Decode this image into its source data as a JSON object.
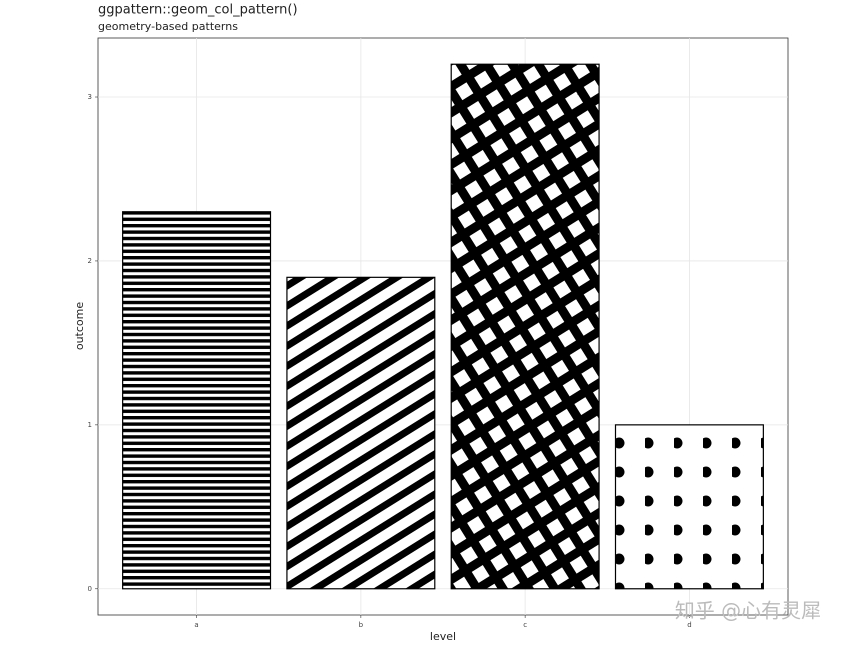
{
  "chart_data": {
    "type": "bar",
    "title": "ggpattern::geom_col_pattern()",
    "subtitle": "geometry-based patterns",
    "x_label": "level",
    "y_label": "outcome",
    "categories": [
      "a",
      "b",
      "c",
      "d"
    ],
    "values": [
      2.3,
      1.9,
      3.2,
      1.0
    ],
    "patterns": [
      "stripe-horizontal",
      "stripe-diagonal",
      "crosshatch",
      "circle"
    ],
    "color": "#000000",
    "ylim": [
      -0.16,
      3.36
    ],
    "yticks": [
      0,
      1,
      2,
      3
    ],
    "grid": true,
    "watermark": "知乎 @心有灵犀"
  }
}
